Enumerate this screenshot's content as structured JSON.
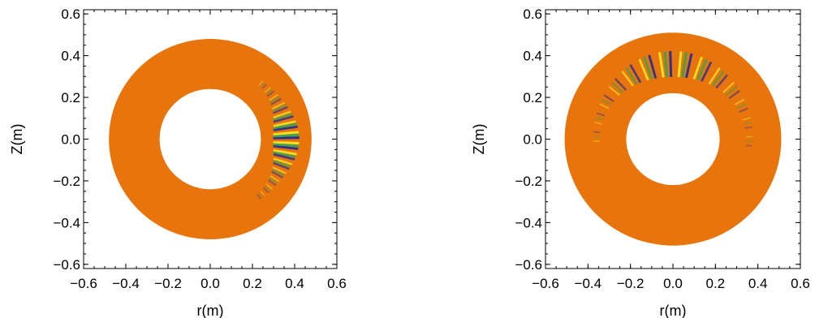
{
  "chart_data": [
    {
      "type": "heatmap",
      "title": "",
      "xlabel": "r(m)",
      "ylabel": "Z(m)",
      "xlim": [
        -0.6,
        0.6
      ],
      "ylim": [
        -0.62,
        0.62
      ],
      "xticks": [
        "−0.6",
        "−0.4",
        "−0.2",
        "0.0",
        "0.2",
        "0.4",
        "0.6"
      ],
      "yticks": [
        "0.6",
        "0.4",
        "0.2",
        "0.0",
        "−0.2",
        "−0.4",
        "−0.6"
      ],
      "annulus": {
        "inner_radius": 0.24,
        "outer_radius": 0.48,
        "fill_color": "#E8740C"
      },
      "mode": {
        "center_angle_deg": 0,
        "angular_half_width_deg": 50,
        "radius": 0.36,
        "peak_colors": [
          "#2B2F8F",
          "#3FA34D",
          "#F5E32A",
          "#E8740C"
        ]
      },
      "grid": false,
      "legend": "none"
    },
    {
      "type": "heatmap",
      "title": "",
      "xlabel": "r(m)",
      "ylabel": "Z(m)",
      "xlim": [
        -0.6,
        0.6
      ],
      "ylim": [
        -0.62,
        0.62
      ],
      "xticks": [
        "−0.6",
        "−0.4",
        "−0.2",
        "0.0",
        "0.2",
        "0.4",
        "0.6"
      ],
      "yticks": [
        "0.6",
        "0.4",
        "0.2",
        "0.0",
        "−0.2",
        "−0.4",
        "−0.6"
      ],
      "annulus": {
        "inner_radius": 0.22,
        "outer_radius": 0.51,
        "fill_color": "#E8740C"
      },
      "mode": {
        "center_angle_deg": 90,
        "angular_half_width_deg": 95,
        "radius": 0.36,
        "peak_colors": [
          "#2B2F8F",
          "#3FA34D",
          "#F5E32A",
          "#E8740C"
        ]
      },
      "grid": false,
      "legend": "none"
    }
  ]
}
